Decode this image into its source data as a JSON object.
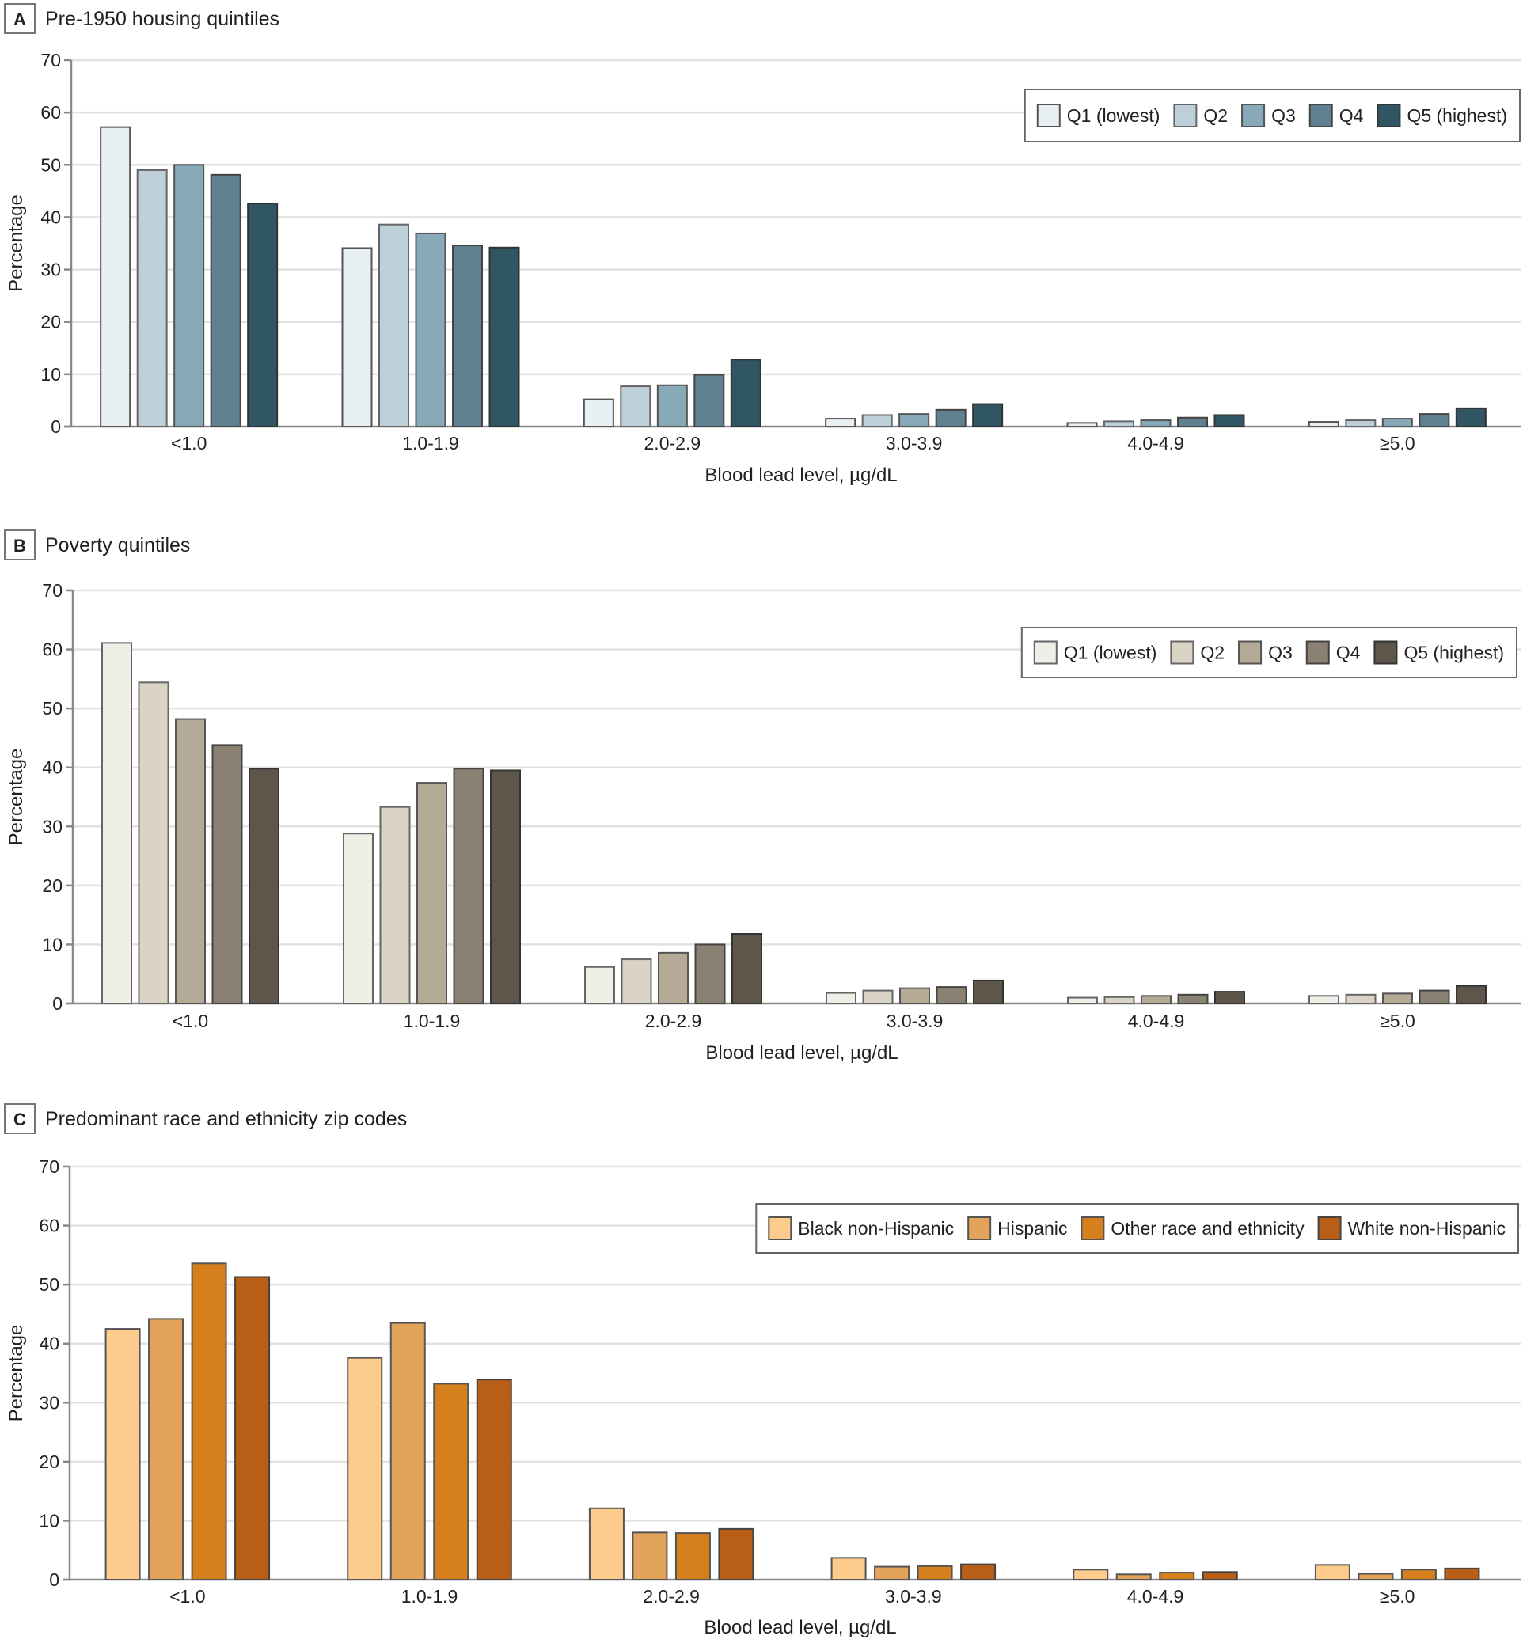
{
  "chart_data": [
    {
      "type": "bar",
      "panel_letter": "A",
      "title": "Pre-1950 housing quintiles",
      "xlabel": "Blood lead level, µg/dL",
      "ylabel": "Percentage",
      "ylim": [
        0,
        70
      ],
      "yticks": [
        0,
        10,
        20,
        30,
        40,
        50,
        60,
        70
      ],
      "grid": true,
      "legend_position": "top-right",
      "categories": [
        "<1.0",
        "1.0-1.9",
        "2.0-2.9",
        "3.0-3.9",
        "4.0-4.9",
        "≥5.0"
      ],
      "series": [
        {
          "name": "Q1 (lowest)",
          "color": "#e8f0f3",
          "stroke": "#555555",
          "values": [
            57.2,
            34.1,
            5.2,
            1.5,
            0.7,
            0.9
          ]
        },
        {
          "name": "Q2",
          "color": "#bdd0d9",
          "stroke": "#666666",
          "values": [
            49.0,
            38.6,
            7.7,
            2.2,
            1.0,
            1.2
          ]
        },
        {
          "name": "Q3",
          "color": "#88a9b8",
          "stroke": "#555555",
          "values": [
            50.0,
            36.9,
            7.9,
            2.4,
            1.2,
            1.5
          ]
        },
        {
          "name": "Q4",
          "color": "#5f8090",
          "stroke": "#444444",
          "values": [
            48.1,
            34.6,
            9.9,
            3.2,
            1.7,
            2.4
          ]
        },
        {
          "name": "Q5 (highest)",
          "color": "#305563",
          "stroke": "#333333",
          "values": [
            42.6,
            34.2,
            12.8,
            4.3,
            2.2,
            3.5
          ]
        }
      ]
    },
    {
      "type": "bar",
      "panel_letter": "B",
      "title": "Poverty quintiles",
      "xlabel": "Blood lead level, µg/dL",
      "ylabel": "Percentage",
      "ylim": [
        0,
        70
      ],
      "yticks": [
        0,
        10,
        20,
        30,
        40,
        50,
        60,
        70
      ],
      "grid": true,
      "legend_position": "top-right",
      "categories": [
        "<1.0",
        "1.0-1.9",
        "2.0-2.9",
        "3.0-3.9",
        "4.0-4.9",
        "≥5.0"
      ],
      "series": [
        {
          "name": "Q1 (lowest)",
          "color": "#efefe8",
          "stroke": "#666666",
          "values": [
            61.1,
            28.8,
            6.2,
            1.8,
            1.0,
            1.3
          ]
        },
        {
          "name": "Q2",
          "color": "#dad4c5",
          "stroke": "#666666",
          "values": [
            54.4,
            33.3,
            7.5,
            2.2,
            1.1,
            1.5
          ]
        },
        {
          "name": "Q3",
          "color": "#b5aa96",
          "stroke": "#555555",
          "values": [
            48.2,
            37.4,
            8.6,
            2.6,
            1.3,
            1.7
          ]
        },
        {
          "name": "Q4",
          "color": "#8b8172",
          "stroke": "#444444",
          "values": [
            43.8,
            39.8,
            10.0,
            2.8,
            1.5,
            2.2
          ]
        },
        {
          "name": "Q5 (highest)",
          "color": "#5e554b",
          "stroke": "#333333",
          "values": [
            39.8,
            39.5,
            11.8,
            3.9,
            2.0,
            3.0
          ]
        }
      ]
    },
    {
      "type": "bar",
      "panel_letter": "C",
      "title": "Predominant race and ethnicity zip codes",
      "xlabel": "Blood lead level, µg/dL",
      "ylabel": "Percentage",
      "ylim": [
        0,
        70
      ],
      "yticks": [
        0,
        10,
        20,
        30,
        40,
        50,
        60,
        70
      ],
      "grid": true,
      "legend_position": "top-right",
      "categories": [
        "<1.0",
        "1.0-1.9",
        "2.0-2.9",
        "3.0-3.9",
        "4.0-4.9",
        "≥5.0"
      ],
      "series": [
        {
          "name": "Black non-Hispanic",
          "color": "#fdcb8c",
          "stroke": "#555555",
          "values": [
            42.5,
            37.6,
            12.1,
            3.7,
            1.7,
            2.5
          ]
        },
        {
          "name": "Hispanic",
          "color": "#e3a35a",
          "stroke": "#555555",
          "values": [
            44.2,
            43.5,
            8.0,
            2.2,
            0.9,
            1.0
          ]
        },
        {
          "name": "Other race and ethnicity",
          "color": "#d5801c",
          "stroke": "#555555",
          "values": [
            53.6,
            33.2,
            7.9,
            2.3,
            1.2,
            1.7
          ]
        },
        {
          "name": "White non-Hispanic",
          "color": "#b85e17",
          "stroke": "#444444",
          "values": [
            51.3,
            33.9,
            8.6,
            2.6,
            1.3,
            1.9
          ]
        }
      ]
    }
  ]
}
